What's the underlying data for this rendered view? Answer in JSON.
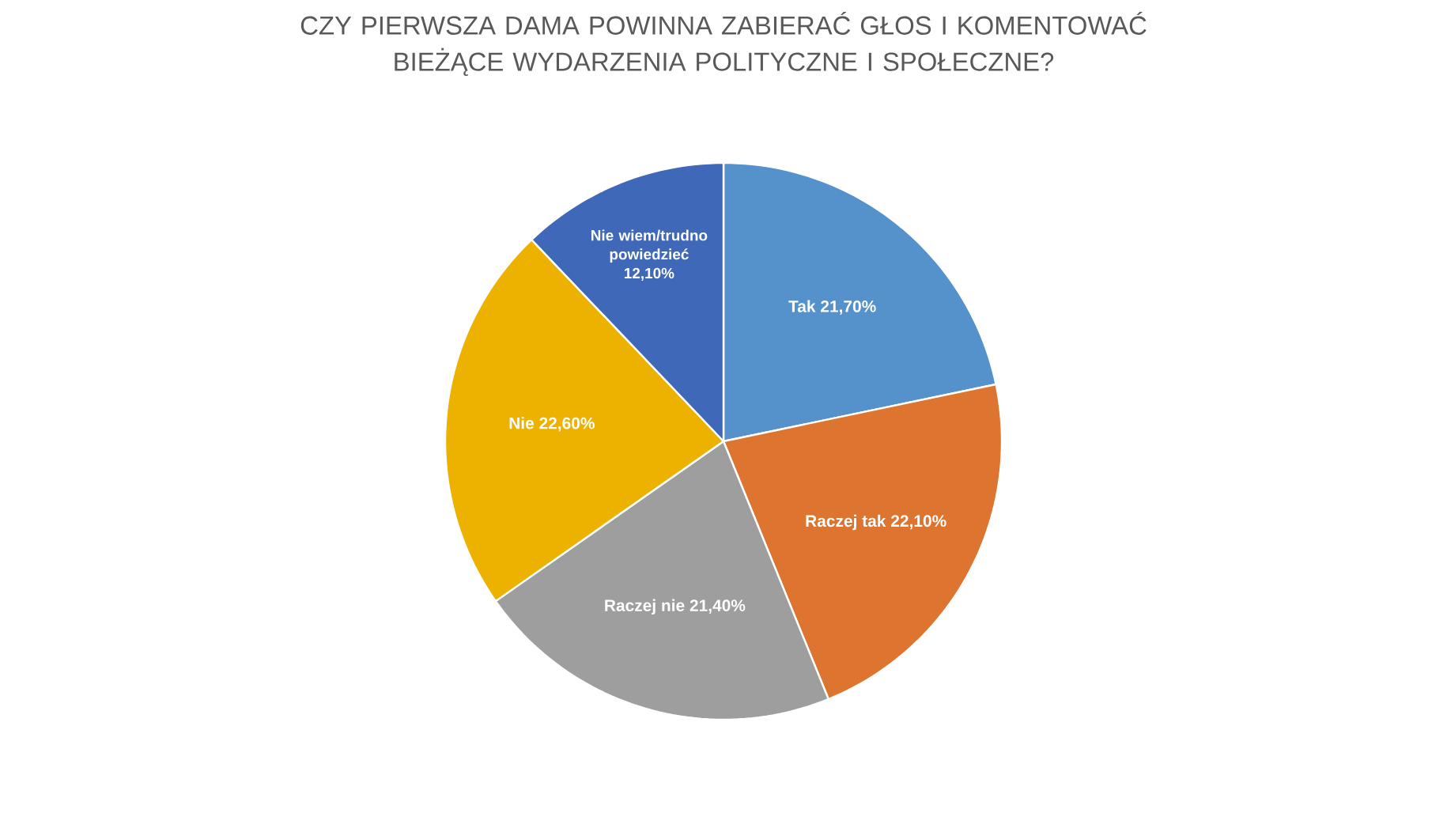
{
  "chart_data": {
    "type": "pie",
    "title": "CZY PIERWSZA DAMA POWINNA ZABIERAĆ GŁOS I KOMENTOWAĆ BIEŻĄCE WYDARZENIA POLITYCZNE I SPOŁECZNE?",
    "categories": [
      "Tak",
      "Raczej tak",
      "Raczej nie",
      "Nie",
      "Nie wiem/trudno powiedzieć"
    ],
    "values": [
      21.7,
      22.1,
      21.4,
      22.6,
      12.1
    ],
    "value_labels": [
      "21,70%",
      "22,10%",
      "21,40%",
      "22,60%",
      "12,10%"
    ],
    "colors": [
      "#5591cb",
      "#dd7430",
      "#9e9e9e",
      "#edb100",
      "#3f69b8"
    ]
  }
}
